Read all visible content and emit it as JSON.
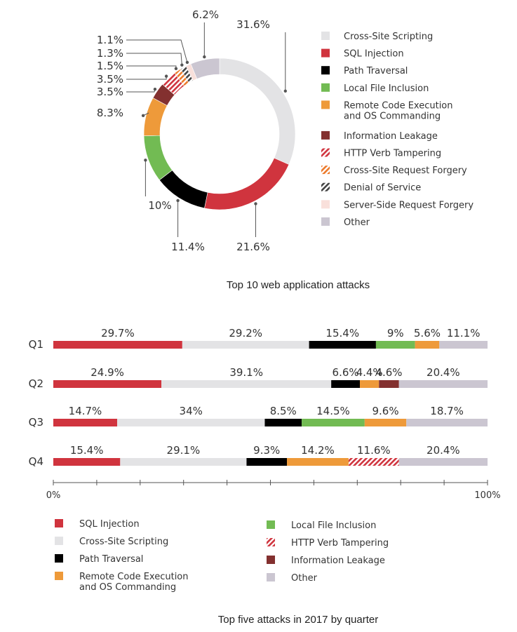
{
  "colors": {
    "sql_injection": "#d0343e",
    "cross_site_scripting": "#e3e3e5",
    "path_traversal": "#000000",
    "local_file_inclusion": "#72bb53",
    "remote_code_execution": "#ee9a3a",
    "information_leakage": "#83302f",
    "http_verb_tampering": "#d0343e",
    "csrf": "#ec7a2b",
    "denial_of_service": "#444444",
    "ssrf": "#f9e0db",
    "other": "#cbc6d1"
  },
  "chart_data": [
    {
      "type": "pie",
      "title": "Top 10 web application attacks",
      "slices": [
        {
          "name": "Cross-Site Scripting",
          "value": 31.6,
          "label": "31.6%",
          "color": "#e3e3e5",
          "pattern": "solid"
        },
        {
          "name": "SQL Injection",
          "value": 21.6,
          "label": "21.6%",
          "color": "#d0343e",
          "pattern": "solid"
        },
        {
          "name": "Path Traversal",
          "value": 11.4,
          "label": "11.4%",
          "color": "#000000",
          "pattern": "solid"
        },
        {
          "name": "Local File Inclusion",
          "value": 10,
          "label": "10%",
          "color": "#72bb53",
          "pattern": "solid"
        },
        {
          "name": "Remote Code Execution and OS Commanding",
          "value": 8.3,
          "label": "8.3%",
          "color": "#ee9a3a",
          "pattern": "solid"
        },
        {
          "name": "Information Leakage",
          "value": 3.5,
          "label": "3.5%",
          "color": "#83302f",
          "pattern": "solid"
        },
        {
          "name": "HTTP Verb Tampering",
          "value": 3.5,
          "label": "3.5%",
          "color": "#d0343e",
          "pattern": "hatch"
        },
        {
          "name": "Cross-Site Request Forgery",
          "value": 1.5,
          "label": "1.5%",
          "color": "#ec7a2b",
          "pattern": "hatch"
        },
        {
          "name": "Denial of Service",
          "value": 1.3,
          "label": "1.3%",
          "color": "#444444",
          "pattern": "hatch"
        },
        {
          "name": "Server-Side Request Forgery",
          "value": 1.1,
          "label": "1.1%",
          "color": "#f9e0db",
          "pattern": "solid"
        },
        {
          "name": "Other",
          "value": 6.2,
          "label": "6.2%",
          "color": "#cbc6d1",
          "pattern": "solid"
        }
      ],
      "legend": [
        {
          "lines": [
            "Cross-Site Scripting"
          ],
          "color": "#e3e3e5",
          "pattern": "solid"
        },
        {
          "lines": [
            "SQL Injection"
          ],
          "color": "#d0343e",
          "pattern": "solid"
        },
        {
          "lines": [
            "Path Traversal"
          ],
          "color": "#000000",
          "pattern": "solid"
        },
        {
          "lines": [
            "Local File Inclusion"
          ],
          "color": "#72bb53",
          "pattern": "solid"
        },
        {
          "lines": [
            "Remote Code Execution",
            "and OS Commanding"
          ],
          "color": "#ee9a3a",
          "pattern": "solid"
        },
        {
          "lines": [
            "Information Leakage"
          ],
          "color": "#83302f",
          "pattern": "solid"
        },
        {
          "lines": [
            "HTTP Verb Tampering"
          ],
          "color": "#d0343e",
          "pattern": "hatch"
        },
        {
          "lines": [
            "Cross-Site Request Forgery"
          ],
          "color": "#ec7a2b",
          "pattern": "hatch"
        },
        {
          "lines": [
            "Denial of Service"
          ],
          "color": "#444444",
          "pattern": "hatch"
        },
        {
          "lines": [
            "Server-Side Request Forgery"
          ],
          "color": "#f9e0db",
          "pattern": "solid"
        },
        {
          "lines": [
            "Other"
          ],
          "color": "#cbc6d1",
          "pattern": "solid"
        }
      ],
      "legend_placement": "right"
    },
    {
      "type": "bar",
      "orientation": "horizontal-stacked",
      "title": "Top five attacks in 2017 by quarter",
      "categories": [
        "Q1",
        "Q2",
        "Q3",
        "Q4"
      ],
      "xlim": [
        0,
        100
      ],
      "x_tick_labels": [
        "0%",
        "100%"
      ],
      "rows": [
        {
          "name": "Q1",
          "segments": [
            {
              "series": "SQL Injection",
              "value": 29.7,
              "label": "29.7%"
            },
            {
              "series": "Cross-Site Scripting",
              "value": 29.2,
              "label": "29.2%"
            },
            {
              "series": "Path Traversal",
              "value": 15.4,
              "label": "15.4%"
            },
            {
              "series": "Local File Inclusion",
              "value": 9,
              "label": "9%"
            },
            {
              "series": "Remote Code Execution and OS Commanding",
              "value": 5.6,
              "label": "5.6%"
            },
            {
              "series": "Other",
              "value": 11.1,
              "label": "11.1%"
            }
          ]
        },
        {
          "name": "Q2",
          "segments": [
            {
              "series": "SQL Injection",
              "value": 24.9,
              "label": "24.9%"
            },
            {
              "series": "Cross-Site Scripting",
              "value": 39.1,
              "label": "39.1%"
            },
            {
              "series": "Path Traversal",
              "value": 6.6,
              "label": "6.6%"
            },
            {
              "series": "Remote Code Execution and OS Commanding",
              "value": 4.4,
              "label": "4.4%"
            },
            {
              "series": "Information Leakage",
              "value": 4.6,
              "label": "4.6%"
            },
            {
              "series": "Other",
              "value": 20.4,
              "label": "20.4%"
            }
          ]
        },
        {
          "name": "Q3",
          "segments": [
            {
              "series": "SQL Injection",
              "value": 14.7,
              "label": "14.7%"
            },
            {
              "series": "Cross-Site Scripting",
              "value": 34,
              "label": "34%"
            },
            {
              "series": "Path Traversal",
              "value": 8.5,
              "label": "8.5%"
            },
            {
              "series": "Local File Inclusion",
              "value": 14.5,
              "label": "14.5%"
            },
            {
              "series": "Remote Code Execution and OS Commanding",
              "value": 9.6,
              "label": "9.6%"
            },
            {
              "series": "Other",
              "value": 18.7,
              "label": "18.7%"
            }
          ]
        },
        {
          "name": "Q4",
          "segments": [
            {
              "series": "SQL Injection",
              "value": 15.4,
              "label": "15.4%"
            },
            {
              "series": "Cross-Site Scripting",
              "value": 29.1,
              "label": "29.1%"
            },
            {
              "series": "Path Traversal",
              "value": 9.3,
              "label": "9.3%"
            },
            {
              "series": "Remote Code Execution and OS Commanding",
              "value": 14.2,
              "label": "14.2%"
            },
            {
              "series": "HTTP Verb Tampering",
              "value": 11.6,
              "label": "11.6%"
            },
            {
              "series": "Other",
              "value": 20.4,
              "label": "20.4%"
            }
          ]
        }
      ],
      "legend": [
        {
          "lines": [
            "SQL Injection"
          ],
          "color": "#d0343e",
          "pattern": "solid"
        },
        {
          "lines": [
            "Cross-Site Scripting"
          ],
          "color": "#e3e3e5",
          "pattern": "solid"
        },
        {
          "lines": [
            "Path Traversal"
          ],
          "color": "#000000",
          "pattern": "solid"
        },
        {
          "lines": [
            "Remote Code Execution",
            "and OS Commanding"
          ],
          "color": "#ee9a3a",
          "pattern": "solid"
        },
        {
          "lines": [
            "Local File Inclusion"
          ],
          "color": "#72bb53",
          "pattern": "solid"
        },
        {
          "lines": [
            "HTTP Verb Tampering"
          ],
          "color": "#d0343e",
          "pattern": "hatch"
        },
        {
          "lines": [
            "Information Leakage"
          ],
          "color": "#83302f",
          "pattern": "solid"
        },
        {
          "lines": [
            "Other"
          ],
          "color": "#cbc6d1",
          "pattern": "solid"
        }
      ],
      "legend_placement": "bottom"
    }
  ]
}
